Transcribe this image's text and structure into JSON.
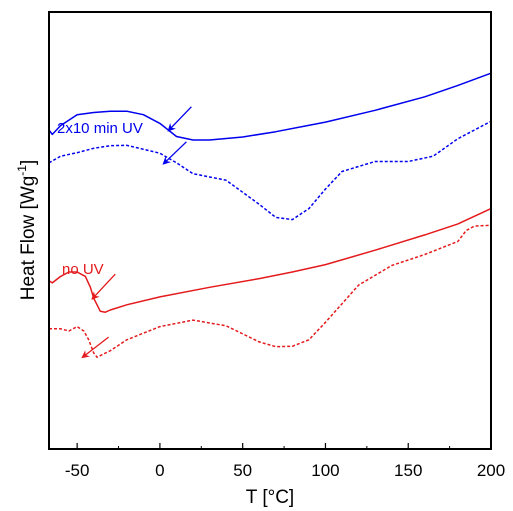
{
  "chart_data": {
    "type": "line",
    "xlabel": "T [°C]",
    "ylabel_main": "Heat Flow [Wg",
    "ylabel_sup": "-1",
    "ylabel_tail": "]",
    "xlim": [
      -67,
      200
    ],
    "ylim": [
      0,
      100
    ],
    "x_ticks": [
      -50,
      0,
      50,
      100,
      150,
      200
    ],
    "x_tick_labels": [
      "-50",
      "0",
      "50",
      "100",
      "150",
      "200"
    ],
    "y_tick_labels": [],
    "grid": false,
    "annotations": [
      {
        "text": "2x10 min UV",
        "color": "#0000ee"
      },
      {
        "text": "no UV",
        "color": "#e41a1c"
      }
    ],
    "series": [
      {
        "color": "#0000ee",
        "style": "solid",
        "x": [
          -67,
          -65,
          -60,
          -50,
          -40,
          -30,
          -20,
          -10,
          0,
          10,
          20,
          30,
          50,
          70,
          100,
          130,
          160,
          180,
          200
        ],
        "y": [
          73,
          72,
          74,
          76.5,
          77,
          77.3,
          77.3,
          76.5,
          74.5,
          71.5,
          70.7,
          70.7,
          71.4,
          72.6,
          74.8,
          77.5,
          80.6,
          83.2,
          86
        ]
      },
      {
        "color": "#0000ee",
        "style": "dashed",
        "x": [
          -67,
          -60,
          -50,
          -40,
          -30,
          -20,
          0,
          10,
          20,
          40,
          60,
          70,
          80,
          90,
          100,
          110,
          130,
          150,
          165,
          180,
          200
        ],
        "y": [
          65.5,
          67,
          67.8,
          68.8,
          69.4,
          69.5,
          67.7,
          65.5,
          63,
          61.5,
          56,
          53,
          52.5,
          55,
          59.5,
          63.5,
          65.8,
          65.8,
          67,
          71,
          75
        ]
      },
      {
        "color": "#e41a1c",
        "style": "solid",
        "x": [
          -67,
          -65,
          -60,
          -55,
          -50,
          -45,
          -42,
          -40,
          -36,
          -33,
          -30,
          -20,
          0,
          30,
          60,
          80,
          100,
          130,
          160,
          180,
          200
        ],
        "y": [
          38.5,
          38,
          39.5,
          40.5,
          40.5,
          39.5,
          37,
          34.5,
          31.5,
          31.3,
          31.8,
          33,
          34.8,
          37,
          39,
          40.5,
          42.2,
          45.5,
          49,
          51.5,
          55
        ]
      },
      {
        "color": "#e41a1c",
        "style": "dashed",
        "x": [
          -67,
          -60,
          -55,
          -50,
          -46,
          -43,
          -40,
          -38,
          -30,
          -20,
          0,
          20,
          40,
          60,
          70,
          80,
          90,
          100,
          120,
          140,
          160,
          180,
          185,
          190,
          200
        ],
        "y": [
          27.5,
          27.5,
          27,
          28,
          27,
          25,
          22,
          21,
          22.5,
          25,
          28,
          29.5,
          28.2,
          24.5,
          23.4,
          23.5,
          25,
          29,
          37.5,
          42,
          44.5,
          47.5,
          50,
          51,
          51.2
        ]
      }
    ],
    "arrows": [
      {
        "color": "#0000ee",
        "tail": [
          19,
          78.3
        ],
        "head": [
          5,
          72.8
        ]
      },
      {
        "color": "#0000ee",
        "tail": [
          16,
          70.3
        ],
        "head": [
          2,
          65.2
        ]
      },
      {
        "color": "#e41a1c",
        "tail": [
          -27,
          40.0
        ],
        "head": [
          -41,
          34.3
        ]
      },
      {
        "color": "#e41a1c",
        "tail": [
          -31,
          25.6
        ],
        "head": [
          -47,
          20.9
        ]
      }
    ]
  }
}
